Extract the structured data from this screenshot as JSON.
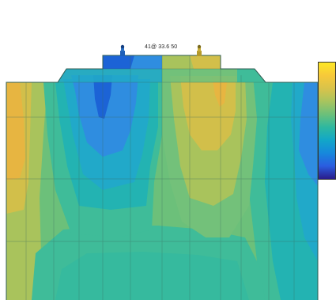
{
  "annotation": {
    "text": "41@ 33.6 50"
  },
  "colormap": {
    "name": "parula",
    "stops": [
      "#fde725",
      "#f7c93a",
      "#d9c34a",
      "#a8c45e",
      "#6cc07a",
      "#2eb8a0",
      "#12a7c8",
      "#1688dc",
      "#2a5de0",
      "#2a1c8a"
    ]
  },
  "palette": {
    "deep_blue": "#1c63d6",
    "blue": "#2f8de0",
    "light_blue": "#21a9c9",
    "cyan": "#23b3b2",
    "teal": "#3fbc99",
    "green": "#73c17a",
    "yellow_green": "#a9c35c",
    "yellow": "#d2bf4a",
    "gold": "#e7b541",
    "mesh_line": "#3b6a5e"
  },
  "pins": [
    {
      "name": "left-pin",
      "color": "#1f5fb8"
    },
    {
      "name": "right-pin",
      "color": "#9a8a2a"
    }
  ]
}
